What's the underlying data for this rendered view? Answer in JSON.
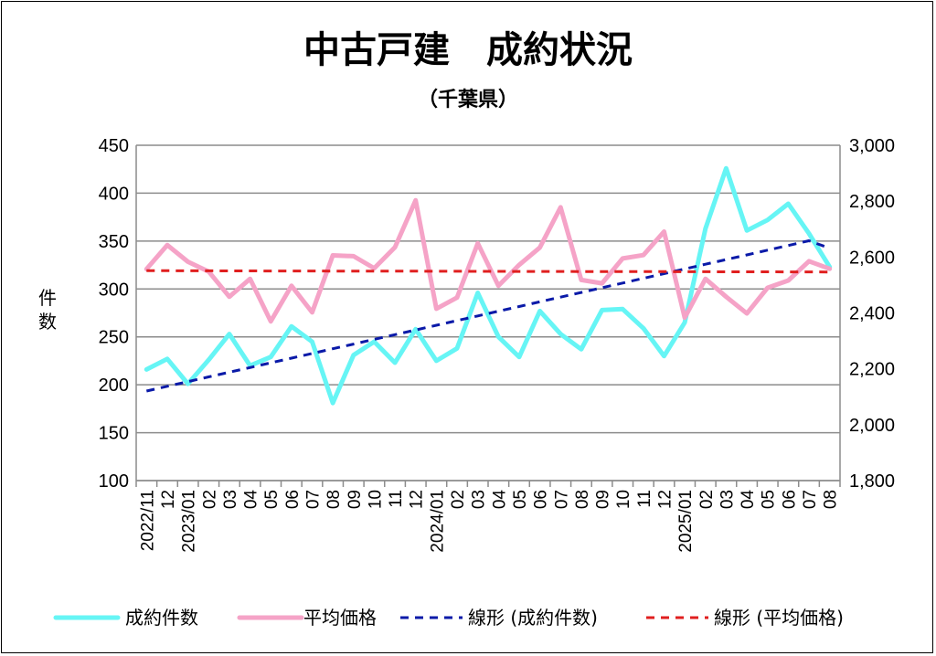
{
  "chart_data": {
    "type": "line",
    "title": "中古戸建　成約状況",
    "subtitle": "（千葉県）",
    "ylabel": "件数",
    "y2label": "",
    "categories": [
      "2022/11",
      "12",
      "2023/01",
      "02",
      "03",
      "04",
      "05",
      "06",
      "07",
      "08",
      "09",
      "10",
      "11",
      "12",
      "2024/01",
      "02",
      "03",
      "04",
      "05",
      "06",
      "07",
      "08",
      "09",
      "10",
      "11",
      "12",
      "2025/01",
      "02",
      "03",
      "04",
      "05",
      "06",
      "07",
      "08"
    ],
    "ylim": [
      100,
      450
    ],
    "yticks": [
      "100",
      "150",
      "200",
      "250",
      "300",
      "350",
      "400",
      "450"
    ],
    "y2lim": [
      1800,
      3000
    ],
    "y2ticks": [
      "1,800",
      "2,000",
      "2,200",
      "2,400",
      "2,600",
      "2,800",
      "3,000"
    ],
    "grid": true,
    "legend_position": "bottom",
    "series": [
      {
        "name": "成約件数",
        "axis": "left",
        "color": "#66f5f5",
        "style": "solid",
        "values": [
          216,
          227,
          201,
          226,
          253,
          220,
          229,
          261,
          245,
          181,
          231,
          245,
          223,
          258,
          225,
          238,
          296,
          250,
          229,
          277,
          253,
          237,
          278,
          279,
          259,
          230,
          265,
          363,
          426,
          361,
          372,
          389,
          358,
          323
        ]
      },
      {
        "name": "平均価格",
        "axis": "right",
        "color": "#f5a3c7",
        "style": "solid",
        "values": [
          2557,
          2643,
          2583,
          2548,
          2458,
          2522,
          2370,
          2497,
          2402,
          2606,
          2603,
          2560,
          2635,
          2803,
          2415,
          2455,
          2649,
          2497,
          2572,
          2634,
          2778,
          2518,
          2506,
          2595,
          2607,
          2691,
          2383,
          2522,
          2458,
          2398,
          2490,
          2516,
          2585,
          2558
        ]
      },
      {
        "name": "線形 (成約件数)",
        "axis": "left",
        "color": "#0a1aa8",
        "style": "dashed",
        "values": [
          193.5,
          198.4,
          203.3,
          208.2,
          213.1,
          218.0,
          222.9,
          227.8,
          232.7,
          237.6,
          242.5,
          247.4,
          252.3,
          257.2,
          262.1,
          267.0,
          271.9,
          276.8,
          281.7,
          286.6,
          291.5,
          296.4,
          301.3,
          306.2,
          311.1,
          316.0,
          320.9,
          325.8,
          330.7,
          335.6,
          340.5,
          345.4,
          350.3,
          342.5
        ]
      },
      {
        "name": "線形 (平均価格)",
        "axis": "right",
        "color": "#e01f1f",
        "style": "dashed",
        "values": [
          2551,
          2550.9,
          2550.8,
          2550.6,
          2550.5,
          2550.4,
          2550.2,
          2550.1,
          2550.0,
          2549.8,
          2549.7,
          2549.6,
          2549.4,
          2549.3,
          2549.2,
          2549.0,
          2548.9,
          2548.8,
          2548.6,
          2548.5,
          2548.4,
          2548.2,
          2548.1,
          2548.0,
          2547.8,
          2547.7,
          2547.6,
          2547.4,
          2547.3,
          2547.2,
          2547.0,
          2546.9,
          2546.8,
          2546.6
        ]
      }
    ],
    "legend": [
      "成約件数",
      "平均価格",
      "線形 (成約件数)",
      "線形 (平均価格)"
    ]
  }
}
